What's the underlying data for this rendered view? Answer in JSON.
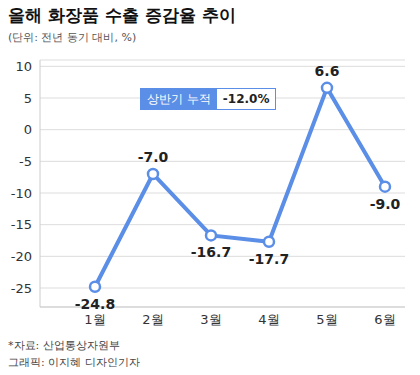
{
  "chart_data": {
    "type": "line",
    "title": "올해 화장품 수출 증감율 추이",
    "subtitle": "(단위: 전년 동기 대비, %)",
    "categories": [
      "1월",
      "2월",
      "3월",
      "4월",
      "5월",
      "6월"
    ],
    "values": [
      -24.8,
      -7.0,
      -16.7,
      -17.7,
      6.6,
      -9.0
    ],
    "value_labels": [
      "-24.8",
      "-7.0",
      "-16.7",
      "-17.7",
      "6.6",
      "-9.0"
    ],
    "color": "#5b8ee6",
    "marker": "circle",
    "ylim": [
      -28,
      11
    ],
    "yticks": [
      10,
      5,
      0,
      -5,
      -10,
      -15,
      -20,
      -25
    ],
    "grid": true,
    "data_labels": true,
    "annotations": [
      "상반기 누적",
      "-12.0%"
    ],
    "source": "*자료: 산업통상자원부",
    "credit": "그래픽: 이지혜 디자인기자"
  }
}
